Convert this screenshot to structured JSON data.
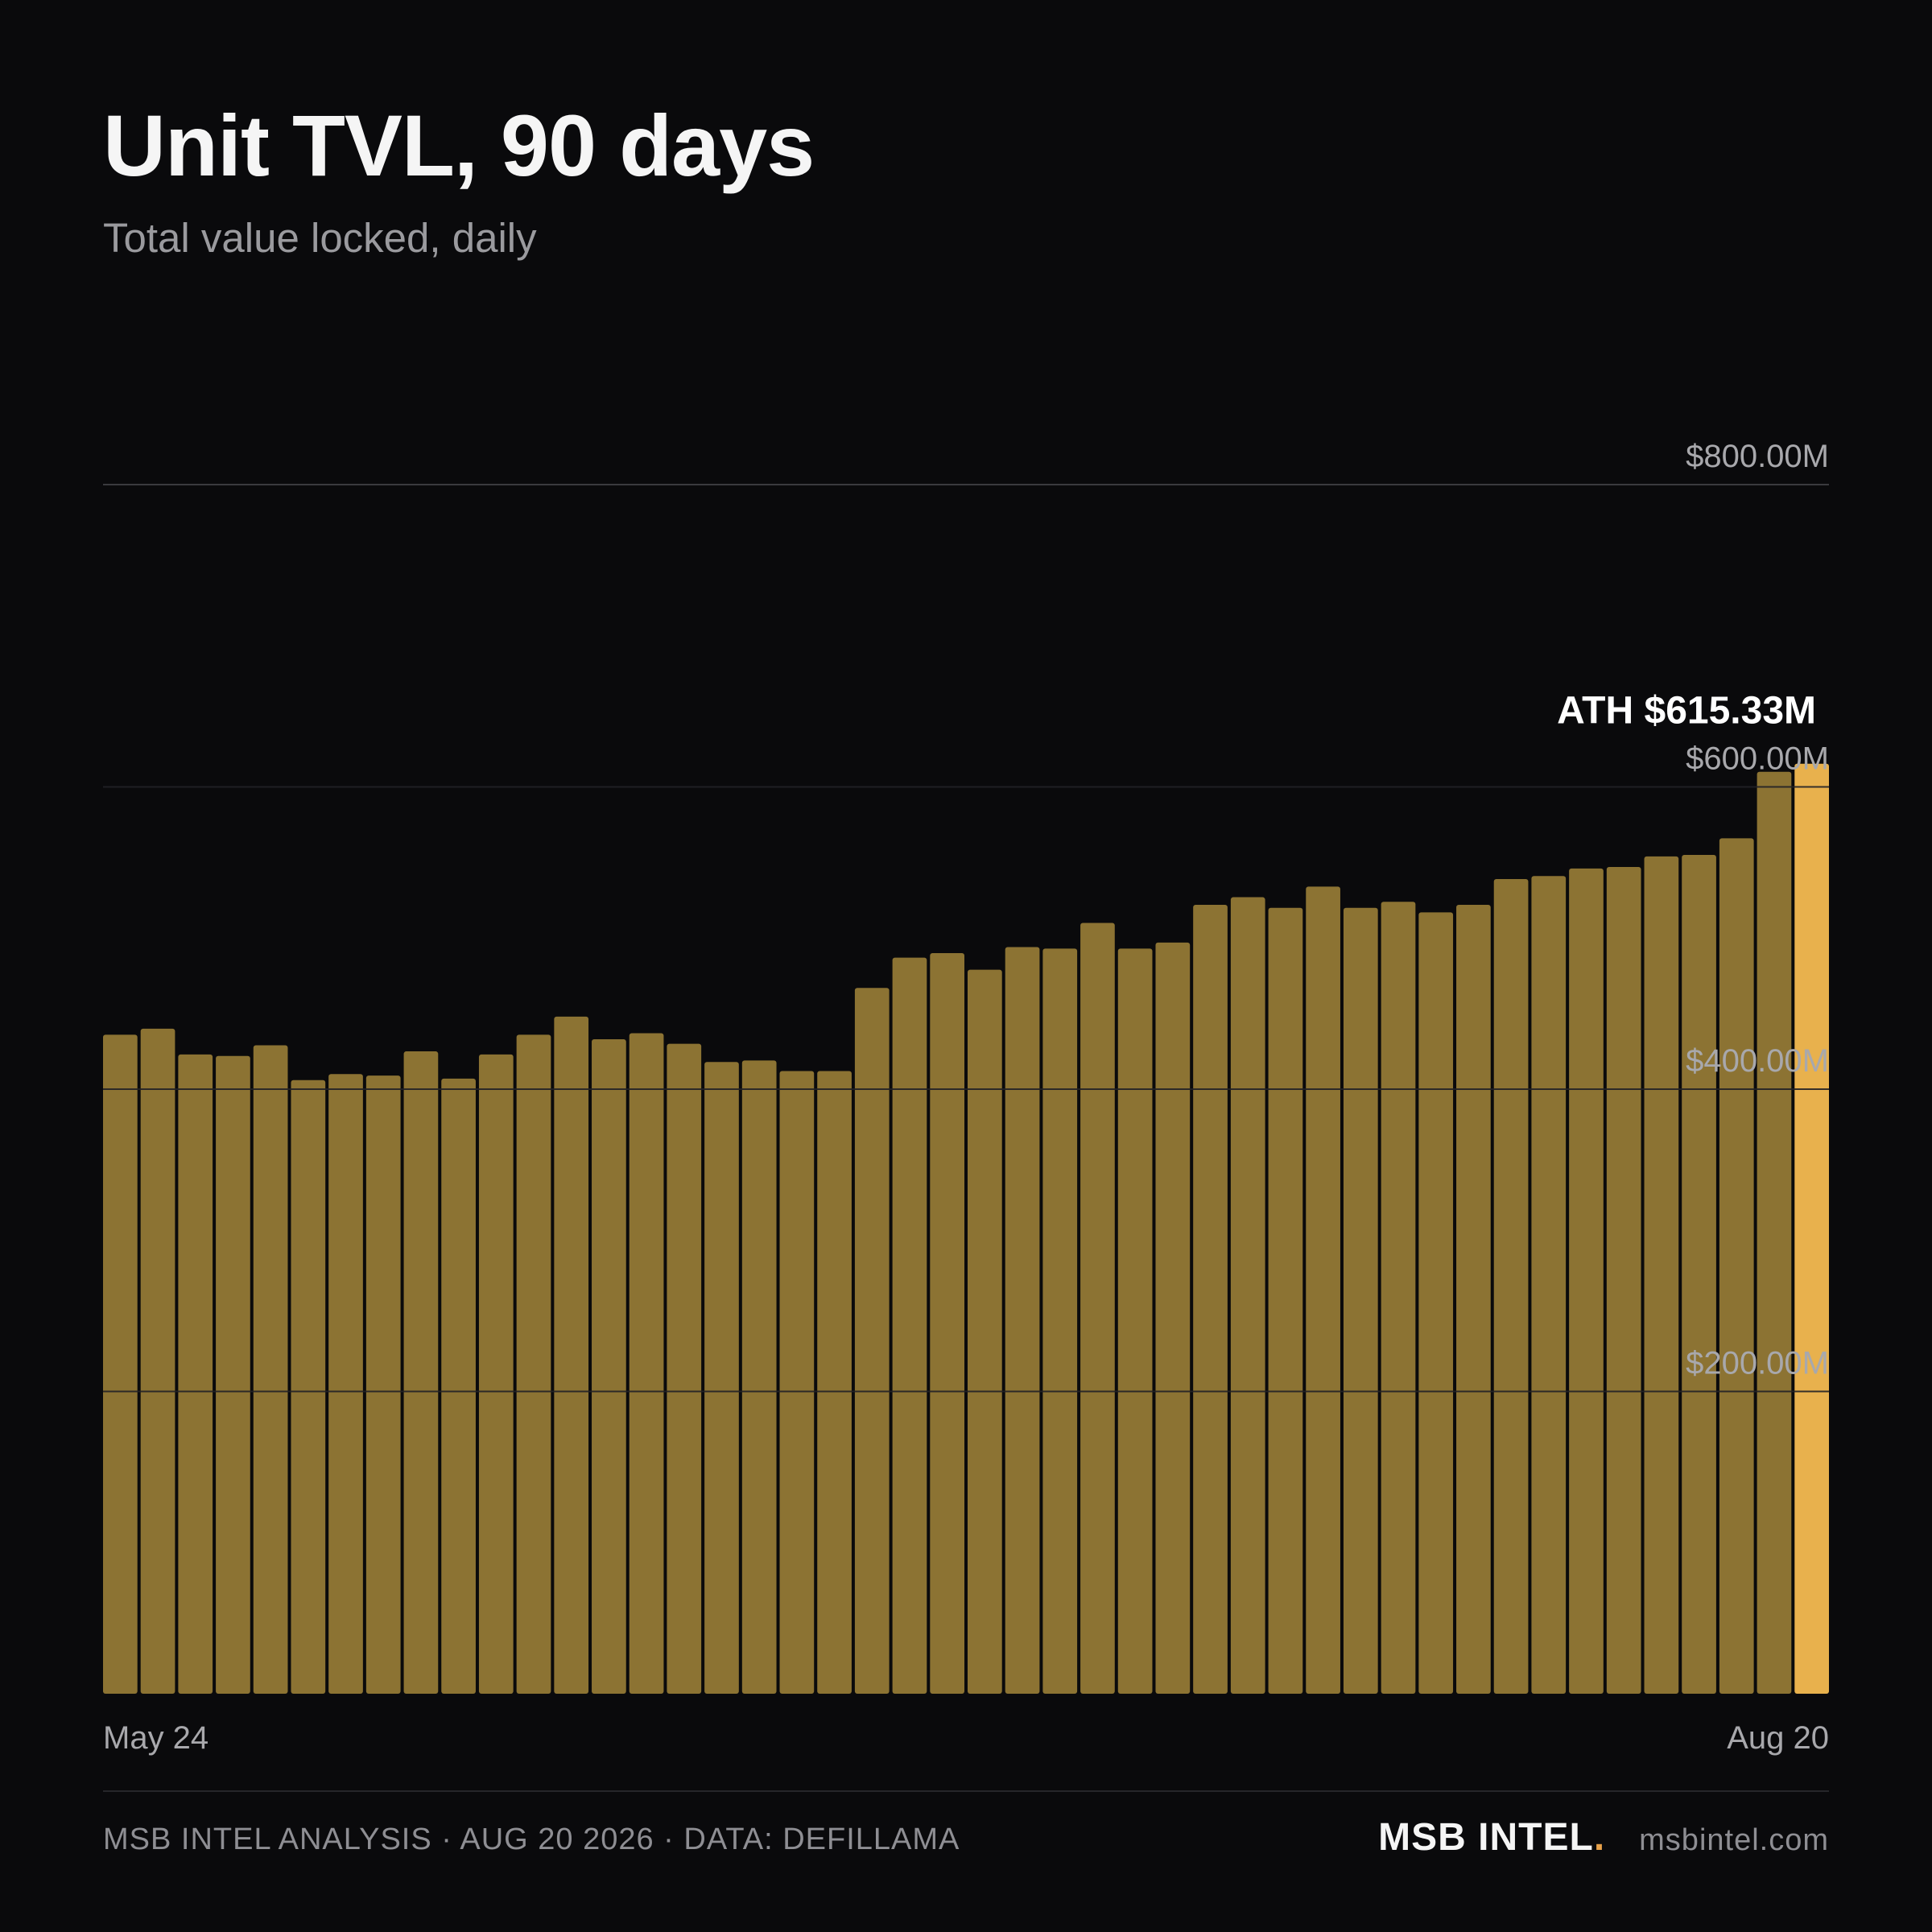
{
  "header": {
    "title": "Unit TVL, 90 days",
    "subtitle": "Total value locked, daily"
  },
  "footer": {
    "credit": "MSB INTEL ANALYSIS · AUG 20 2026 · DATA: DEFILLAMA",
    "brand": "MSB INTEL",
    "brand_dot": ".",
    "site": "msbintel.com"
  },
  "colors": {
    "background": "#0a0a0c",
    "bar": "#8c7333",
    "bar_highlight": "#e8b14d",
    "grid": "#3a3a3e",
    "tick_text": "#a8a8ac",
    "annotation": "#ffffff",
    "brand_accent": "#e8a24a"
  },
  "chart_data": {
    "type": "bar",
    "title": "Unit TVL, 90 days",
    "subtitle": "Total value locked, daily",
    "x_start_label": "May 24",
    "x_end_label": "Aug 20",
    "ylim": [
      0,
      800
    ],
    "y_unit": "$M",
    "y_ticks": [
      {
        "value": 200,
        "label": "$200.00M"
      },
      {
        "value": 400,
        "label": "$400.00M"
      },
      {
        "value": 600,
        "label": "$600.00M"
      },
      {
        "value": 800,
        "label": "$800.00M"
      }
    ],
    "grid": true,
    "values": [
      436,
      440,
      423,
      422,
      429,
      406,
      410,
      409,
      425,
      407,
      423,
      436,
      448,
      433,
      437,
      430,
      418,
      419,
      412,
      412,
      467,
      487,
      490,
      479,
      494,
      493,
      510,
      493,
      497,
      522,
      527,
      520,
      534,
      520,
      524,
      517,
      522,
      539,
      541,
      546,
      547,
      554,
      555,
      566,
      610,
      615.33
    ],
    "highlight_index": 45,
    "annotation": {
      "label": "ATH $615.33M",
      "value": 615.33
    }
  }
}
